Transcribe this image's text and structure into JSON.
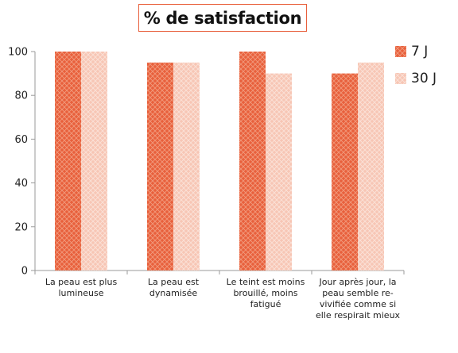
{
  "chart_data": {
    "type": "bar",
    "title": "% de satisfaction",
    "categories": [
      "La peau est plus lumineuse",
      "La peau est dynamisée",
      "Le teint est moins brouillé, moins fatigué",
      "Jour après jour, la peau semble re-vivifiée comme si elle respirait mieux"
    ],
    "series": [
      {
        "name": "7 J",
        "values": [
          100,
          95,
          100,
          90
        ],
        "color": "#e8603c"
      },
      {
        "name": "30 J",
        "values": [
          100,
          95,
          90,
          95
        ],
        "color": "#f7c6b5"
      }
    ],
    "ylim": [
      0,
      100
    ],
    "yticks": [
      0,
      20,
      40,
      60,
      80,
      100
    ],
    "grid": false,
    "legend_position": "right"
  }
}
